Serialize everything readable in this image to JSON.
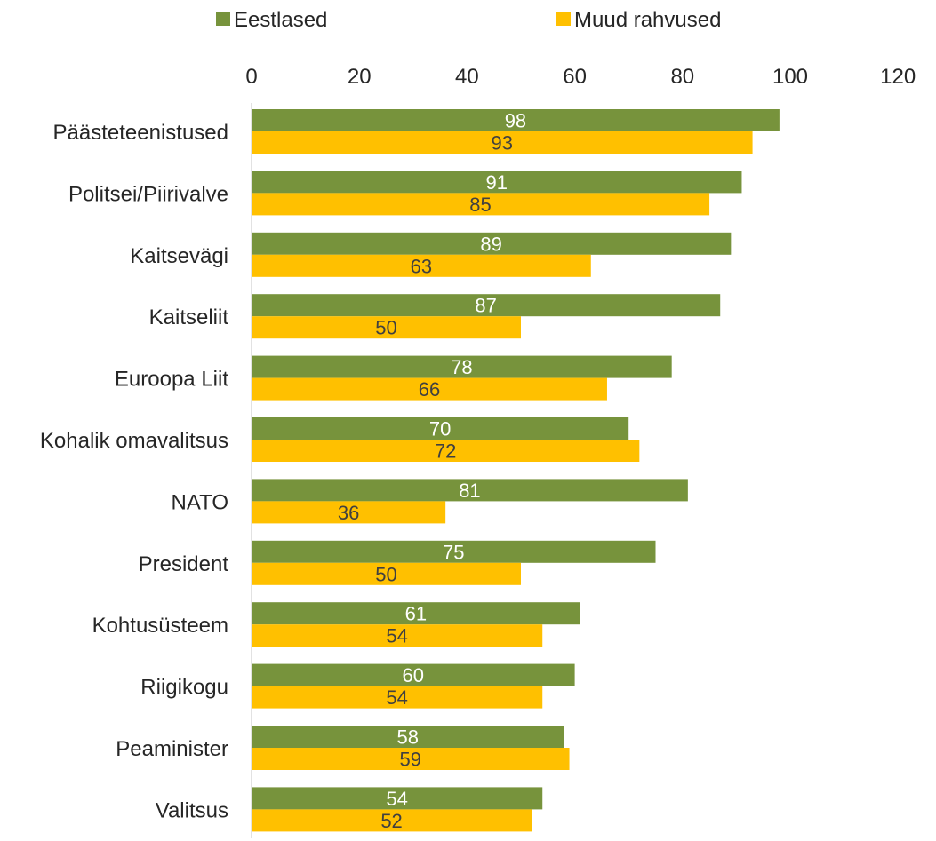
{
  "chart_data": {
    "type": "bar",
    "orientation": "horizontal",
    "categories": [
      "Päästeteenistused",
      "Politsei/Piirivalve",
      "Kaitsevägi",
      "Kaitseliit",
      "Euroopa Liit",
      "Kohalik omavalitsus",
      "NATO",
      "President",
      "Kohtusüsteem",
      "Riigikogu",
      "Peaminister",
      "Valitsus"
    ],
    "series": [
      {
        "name": "Eestlased",
        "color": "#77933C",
        "label_color": "#ffffff",
        "values": [
          98,
          91,
          89,
          87,
          78,
          70,
          81,
          75,
          61,
          60,
          58,
          54
        ]
      },
      {
        "name": "Muud rahvused",
        "color": "#FFC000",
        "label_color": "#404040",
        "values": [
          93,
          85,
          63,
          50,
          66,
          72,
          36,
          50,
          54,
          54,
          59,
          52
        ]
      }
    ],
    "xlim": [
      0,
      120
    ],
    "ticks": [
      0,
      20,
      40,
      60,
      80,
      100,
      120
    ],
    "tick_labels": [
      "0",
      "20",
      "40",
      "60",
      "80",
      "100",
      "120"
    ],
    "axis_position": "top",
    "legend_position": "top",
    "grid": false
  }
}
